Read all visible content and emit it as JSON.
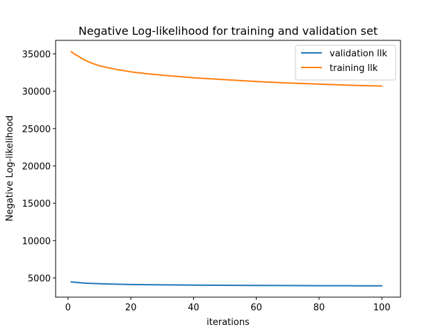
{
  "chart_data": {
    "type": "line",
    "title": "Negative Log-likelihood for training and validation set",
    "xlabel": "iterations",
    "ylabel": "Negative Log-likelihood",
    "xlim": [
      -3.95,
      105.95
    ],
    "ylim": [
      2440,
      36810
    ],
    "x_ticks": [
      0,
      20,
      40,
      60,
      80,
      100
    ],
    "y_ticks": [
      5000,
      10000,
      15000,
      20000,
      25000,
      30000,
      35000
    ],
    "grid": false,
    "legend_position": "top-right",
    "series": [
      {
        "name": "validation llk",
        "color": "#1f77b4",
        "x": [
          1,
          2,
          3,
          5,
          7,
          10,
          15,
          20,
          30,
          40,
          50,
          60,
          70,
          80,
          90,
          100
        ],
        "values": [
          4470,
          4440,
          4400,
          4330,
          4280,
          4230,
          4170,
          4130,
          4080,
          4050,
          4020,
          4000,
          3990,
          3970,
          3960,
          3950
        ]
      },
      {
        "name": "training llk",
        "color": "#ff7f0e",
        "x": [
          1,
          2,
          3,
          5,
          7,
          10,
          15,
          20,
          25,
          30,
          40,
          50,
          60,
          70,
          80,
          90,
          100
        ],
        "values": [
          35300,
          35000,
          34750,
          34250,
          33850,
          33400,
          32950,
          32600,
          32350,
          32150,
          31800,
          31550,
          31300,
          31100,
          30950,
          30800,
          30700
        ]
      }
    ]
  }
}
